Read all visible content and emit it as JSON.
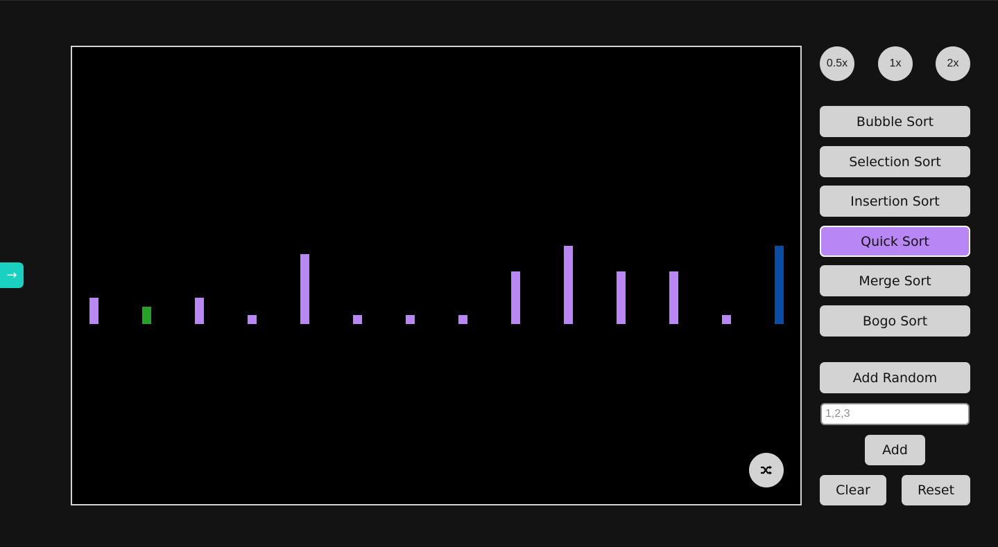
{
  "sidebar_toggle": {
    "icon": "arrow-right-icon",
    "glyph": "→",
    "color": "#1ad1c1"
  },
  "speed": {
    "options": [
      "0.5x",
      "1x",
      "2x"
    ]
  },
  "algorithms": {
    "items": [
      "Bubble Sort",
      "Selection Sort",
      "Insertion Sort",
      "Quick Sort",
      "Merge Sort",
      "Bogo Sort"
    ],
    "active": "Quick Sort",
    "active_color": "#b987f5"
  },
  "controls": {
    "add_random_label": "Add Random",
    "input_placeholder": "1,2,3",
    "input_value": "",
    "add_label": "Add",
    "clear_label": "Clear",
    "reset_label": "Reset"
  },
  "shuffle": {
    "icon": "shuffle-icon"
  },
  "array": {
    "values": [
      3,
      2,
      3,
      1,
      8,
      1,
      1,
      1,
      6,
      9,
      6,
      6,
      1,
      9
    ],
    "states": [
      "default",
      "compare",
      "default",
      "default",
      "default",
      "default",
      "default",
      "default",
      "default",
      "default",
      "default",
      "default",
      "default",
      "pivot"
    ],
    "colors": {
      "default": "#b987f5",
      "compare": "#26a326",
      "pivot": "#0a4da5"
    }
  }
}
